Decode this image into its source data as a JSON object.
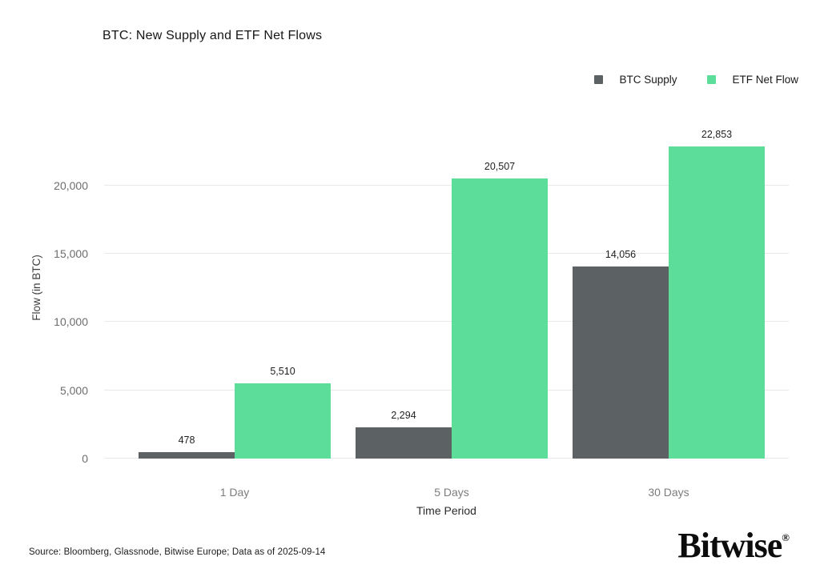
{
  "title": "BTC: New Supply and ETF Net Flows",
  "chart_data": {
    "type": "bar",
    "title": "BTC: New Supply and ETF Net Flows",
    "categories": [
      "1 Day",
      "5 Days",
      "30 Days"
    ],
    "series": [
      {
        "name": "BTC Supply",
        "color": "#5C6164",
        "values": [
          478,
          2294,
          14056
        ],
        "labels": [
          "478",
          "2,294",
          "14,056"
        ]
      },
      {
        "name": "ETF Net Flow",
        "color": "#5CDE9A",
        "values": [
          5510,
          20507,
          22853
        ],
        "labels": [
          "5,510",
          "20,507",
          "22,853"
        ]
      }
    ],
    "xlabel": "Time Period",
    "ylabel": "Flow (in BTC)",
    "ylim": [
      0,
      25100
    ],
    "yticks": [
      0,
      5000,
      10000,
      15000,
      20000
    ],
    "ytick_labels": [
      "0",
      "5,000",
      "10,000",
      "15,000",
      "20,000"
    ],
    "grid": true,
    "legend_position": "top-right"
  },
  "footer": {
    "source": "Source: Bloomberg, Glassnode, Bitwise Europe; Data as of 2025-09-14",
    "brand": "Bitwise",
    "brand_mark": "®"
  }
}
